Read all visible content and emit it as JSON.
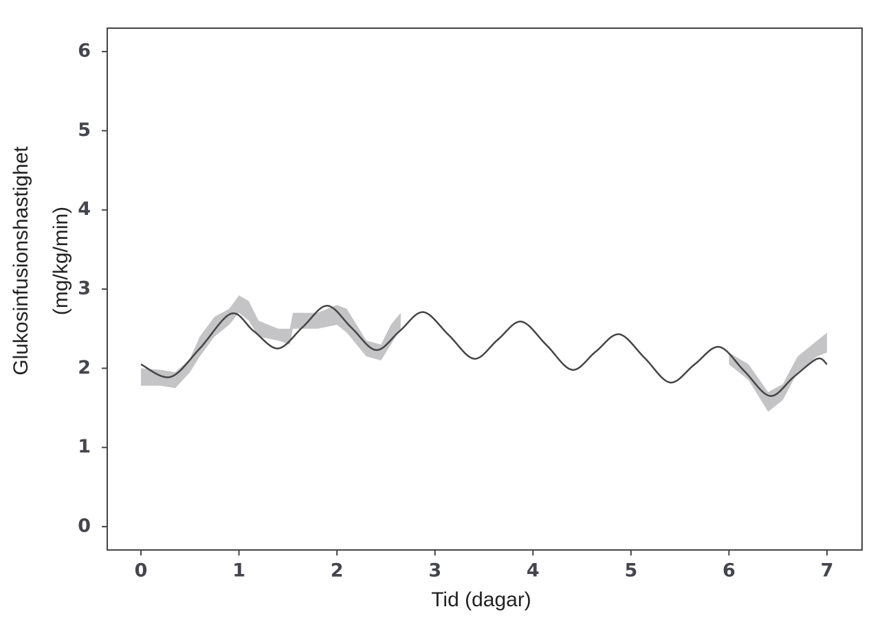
{
  "chart_data": {
    "type": "line",
    "xlabel": "Tid (dagar)",
    "ylabel": [
      "Glukosinfusionshastighet",
      "(mg/kg/min)"
    ],
    "xlim": [
      -0.344,
      7.358
    ],
    "ylim": [
      -0.295,
      6.296
    ],
    "xticks": [
      0,
      1,
      2,
      3,
      4,
      5,
      6,
      7
    ],
    "yticks": [
      0,
      1,
      2,
      3,
      4,
      5,
      6
    ],
    "band": {
      "color": "#c4c4c6",
      "x": [
        0,
        0.2,
        0.35,
        0.5,
        0.6,
        0.75,
        0.9,
        1.0,
        1.1,
        1.2,
        1.4,
        1.52,
        1.55,
        1.8,
        2.0,
        2.1,
        2.3,
        2.45,
        2.55,
        2.65,
        4,
        6.0,
        6.2,
        6.4,
        6.55,
        6.7,
        6.9,
        7.0
      ],
      "lower": [
        1.78,
        1.78,
        1.75,
        1.95,
        2.15,
        2.4,
        2.55,
        2.7,
        2.6,
        2.4,
        2.35,
        2.3,
        2.5,
        2.5,
        2.55,
        2.45,
        2.15,
        2.1,
        2.3,
        2.5,
        null,
        2.05,
        1.85,
        1.45,
        1.6,
        1.95,
        2.15,
        2.2
      ],
      "upper": [
        2.0,
        1.98,
        1.95,
        2.12,
        2.4,
        2.65,
        2.75,
        2.92,
        2.85,
        2.6,
        2.5,
        2.5,
        2.7,
        2.7,
        2.8,
        2.75,
        2.35,
        2.3,
        2.55,
        2.7,
        null,
        2.2,
        2.05,
        1.7,
        1.8,
        2.15,
        2.35,
        2.45
      ]
    },
    "series": [
      {
        "color": "#444444",
        "x": [
          0,
          0.3,
          0.6,
          0.92,
          1.15,
          1.4,
          1.65,
          1.9,
          2.15,
          2.4,
          2.64,
          2.88,
          3.14,
          3.4,
          3.64,
          3.88,
          4.14,
          4.4,
          4.64,
          4.88,
          5.14,
          5.4,
          5.65,
          5.9,
          6.16,
          6.42,
          6.66,
          6.9,
          7
        ],
        "values": [
          2.05,
          1.89,
          2.25,
          2.69,
          2.47,
          2.25,
          2.52,
          2.79,
          2.51,
          2.23,
          2.47,
          2.71,
          2.42,
          2.12,
          2.36,
          2.59,
          2.29,
          1.98,
          2.21,
          2.43,
          2.13,
          1.82,
          2.05,
          2.27,
          1.96,
          1.65,
          1.89,
          2.12,
          2.05
        ]
      }
    ]
  }
}
